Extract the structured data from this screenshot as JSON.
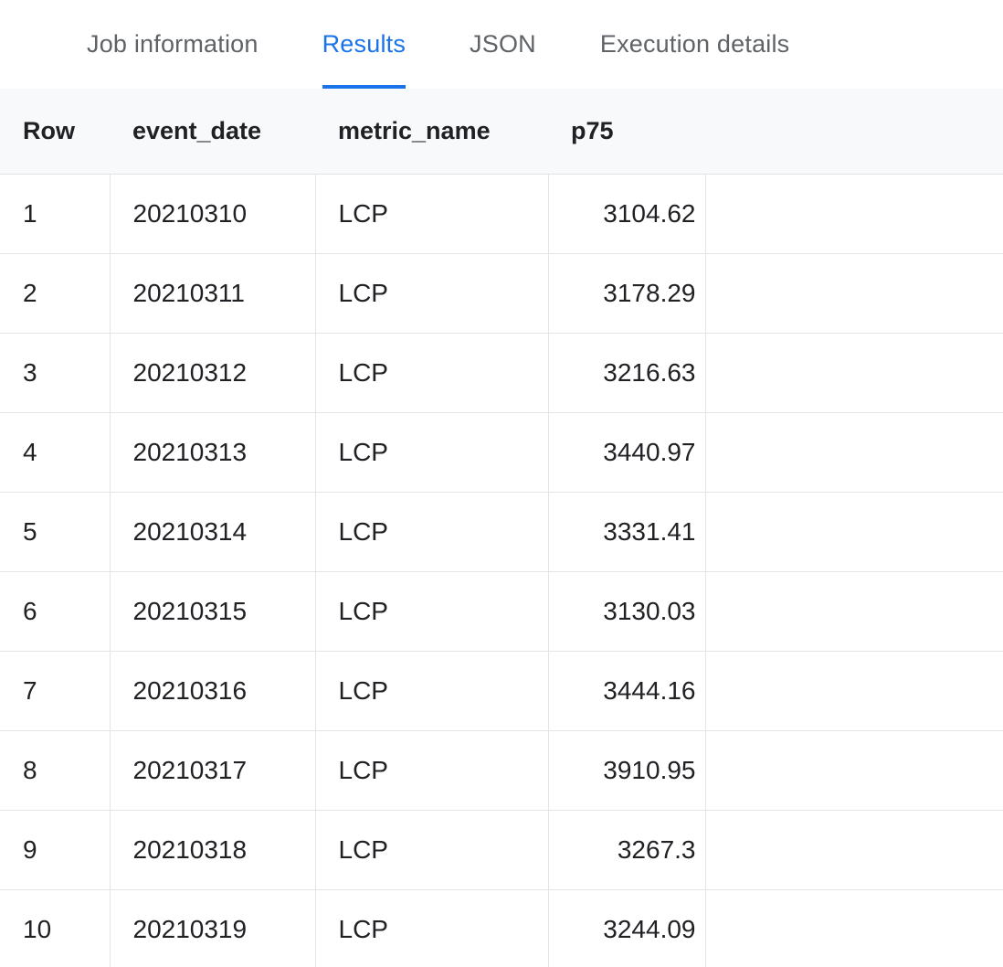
{
  "tabs": [
    {
      "label": "Job information",
      "active": false
    },
    {
      "label": "Results",
      "active": true
    },
    {
      "label": "JSON",
      "active": false
    },
    {
      "label": "Execution details",
      "active": false
    }
  ],
  "table": {
    "columns": [
      "Row",
      "event_date",
      "metric_name",
      "p75"
    ],
    "rows": [
      [
        "1",
        "20210310",
        "LCP",
        "3104.62"
      ],
      [
        "2",
        "20210311",
        "LCP",
        "3178.29"
      ],
      [
        "3",
        "20210312",
        "LCP",
        "3216.63"
      ],
      [
        "4",
        "20210313",
        "LCP",
        "3440.97"
      ],
      [
        "5",
        "20210314",
        "LCP",
        "3331.41"
      ],
      [
        "6",
        "20210315",
        "LCP",
        "3130.03"
      ],
      [
        "7",
        "20210316",
        "LCP",
        "3444.16"
      ],
      [
        "8",
        "20210317",
        "LCP",
        "3910.95"
      ],
      [
        "9",
        "20210318",
        "LCP",
        "3267.3"
      ],
      [
        "10",
        "20210319",
        "LCP",
        "3244.09"
      ]
    ]
  },
  "colors": {
    "accent": "#1a73e8",
    "tab_inactive": "#5f6368",
    "header_bg": "#f8f9fa",
    "border": "#e4e4e4",
    "text": "#202124"
  }
}
